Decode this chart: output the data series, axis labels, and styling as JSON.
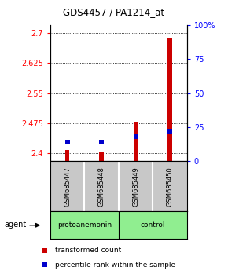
{
  "title": "GDS4457 / PA1214_at",
  "samples": [
    "GSM685447",
    "GSM685448",
    "GSM685449",
    "GSM685450"
  ],
  "red_values": [
    2.408,
    2.404,
    2.478,
    2.686
  ],
  "blue_values": [
    14,
    14,
    18,
    22
  ],
  "ylim_left": [
    2.38,
    2.72
  ],
  "ylim_right": [
    0,
    100
  ],
  "yticks_left": [
    2.4,
    2.475,
    2.55,
    2.625,
    2.7
  ],
  "ytick_labels_left": [
    "2.4",
    "2.475",
    "2.55",
    "2.625",
    "2.7"
  ],
  "yticks_right": [
    0,
    25,
    50,
    75,
    100
  ],
  "ytick_labels_right": [
    "0",
    "25",
    "50",
    "75",
    "100%"
  ],
  "agent_label": "agent",
  "legend_red": "transformed count",
  "legend_blue": "percentile rank within the sample",
  "bar_width": 0.12,
  "red_color": "#cc0000",
  "blue_color": "#0000cc",
  "background_color": "#ffffff",
  "sample_box_color": "#c8c8c8",
  "group1_label": "protoanemonin",
  "group2_label": "control",
  "group_color": "#90ee90",
  "bar_base": 2.38
}
